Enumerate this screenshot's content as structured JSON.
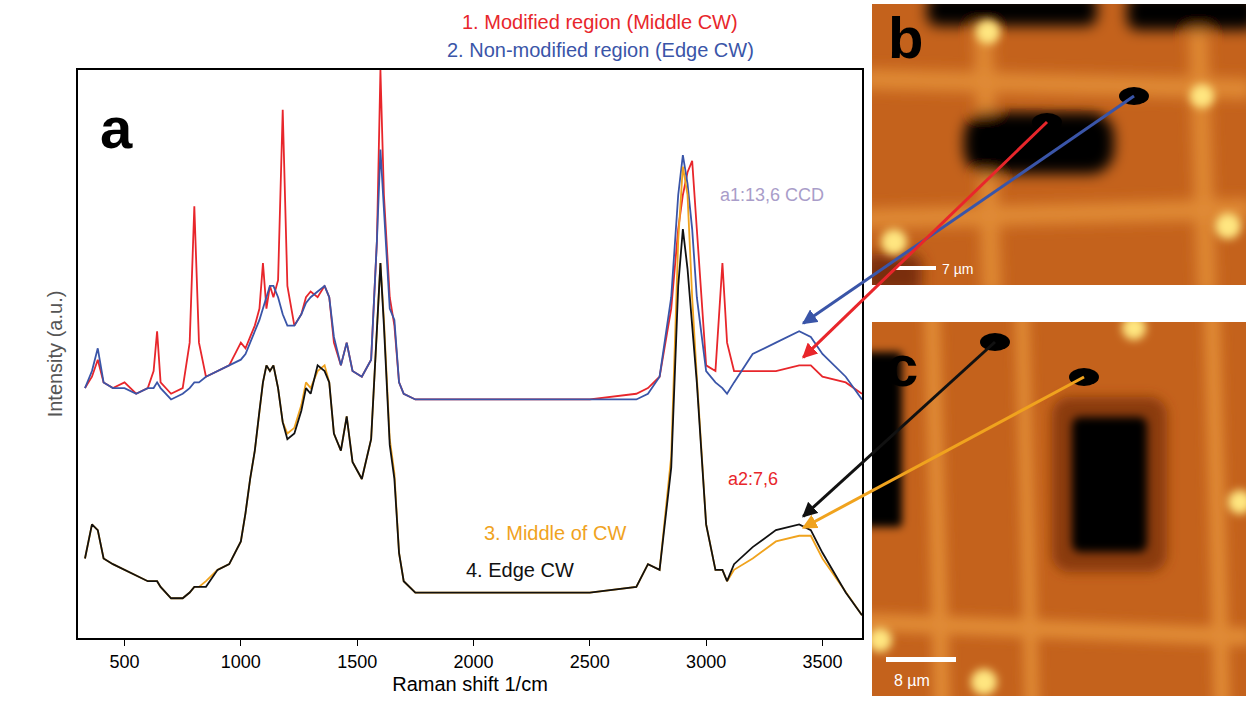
{
  "chart_data": {
    "type": "line",
    "label": "a",
    "x_label": "Raman shift 1/cm",
    "y_label": "Intensity (a.u.)",
    "xlim": [
      300,
      3670
    ],
    "ylim": [
      0,
      100
    ],
    "xticks": [
      500,
      1000,
      1500,
      2000,
      2500,
      3000,
      3500
    ],
    "tick_labels": "x",
    "grid": false,
    "x": [
      330,
      360,
      385,
      410,
      450,
      500,
      550,
      600,
      625,
      640,
      655,
      700,
      750,
      780,
      800,
      820,
      850,
      900,
      950,
      1000,
      1020,
      1040,
      1060,
      1080,
      1095,
      1110,
      1125,
      1140,
      1160,
      1180,
      1200,
      1230,
      1260,
      1280,
      1300,
      1330,
      1360,
      1380,
      1400,
      1430,
      1455,
      1480,
      1520,
      1560,
      1585,
      1600,
      1615,
      1640,
      1660,
      1680,
      1700,
      1750,
      2000,
      2500,
      2700,
      2750,
      2800,
      2850,
      2880,
      2900,
      2920,
      2940,
      2960,
      3000,
      3040,
      3070,
      3090,
      3120,
      3200,
      3300,
      3400,
      3450,
      3500,
      3600,
      3670
    ],
    "series": [
      {
        "name": "1. Modified region (Middle CW)",
        "color": "#e8262b",
        "values": [
          44,
          46,
          49,
          45,
          44,
          45,
          43,
          44,
          47,
          54,
          45,
          43,
          44,
          52,
          76,
          52,
          46,
          47,
          48,
          52,
          51,
          53,
          55,
          58,
          66,
          58,
          62,
          60,
          63,
          93,
          62,
          55,
          57,
          60,
          61,
          60,
          62,
          60,
          52,
          48,
          52,
          47,
          46,
          49,
          70,
          100,
          78,
          60,
          55,
          45,
          43,
          42,
          42,
          42,
          43,
          44,
          46,
          58,
          72,
          78,
          82,
          84,
          72,
          48,
          47,
          66,
          52,
          47,
          47,
          47,
          48,
          48,
          46,
          45,
          43
        ]
      },
      {
        "name": "2. Non-modified region (Edge CW)",
        "color": "#3a55a8",
        "values": [
          44,
          47,
          51,
          45,
          44,
          44,
          43,
          44,
          44,
          45,
          44,
          42,
          43,
          44,
          45,
          45,
          46,
          47,
          48,
          49,
          50,
          52,
          54,
          56,
          58,
          60,
          62,
          62,
          60,
          57,
          55,
          55,
          57,
          59,
          60,
          61,
          62,
          60,
          53,
          48,
          52,
          47,
          46,
          49,
          70,
          86,
          75,
          58,
          56,
          45,
          43,
          42,
          42,
          42,
          42,
          43,
          46,
          60,
          78,
          85,
          80,
          72,
          60,
          47,
          45,
          44,
          43,
          45,
          50,
          52,
          54,
          53,
          50,
          46,
          42
        ]
      },
      {
        "name": "3. Middle of CW",
        "color": "#f0a31e",
        "values": [
          14,
          20,
          19,
          14,
          13,
          12,
          11,
          10,
          10,
          10,
          9,
          7,
          7,
          8,
          9,
          9,
          10,
          12,
          13,
          17,
          22,
          28,
          33,
          40,
          45,
          48,
          47,
          48,
          44,
          38,
          36,
          37,
          41,
          45,
          44,
          47,
          48,
          45,
          36,
          33,
          39,
          31,
          28,
          35,
          55,
          66,
          56,
          35,
          29,
          15,
          10,
          8,
          8,
          8,
          9,
          13,
          12,
          32,
          70,
          83,
          78,
          60,
          46,
          20,
          12,
          12,
          10,
          12,
          14,
          17,
          18,
          18,
          14,
          8,
          4
        ]
      },
      {
        "name": "4. Edge CW",
        "color": "#111111",
        "values": [
          14,
          20,
          19,
          14,
          13,
          12,
          11,
          10,
          10,
          10,
          9,
          7,
          7,
          8,
          9,
          9,
          9,
          12,
          13,
          17,
          22,
          28,
          33,
          40,
          45,
          48,
          47,
          48,
          44,
          38,
          35,
          36,
          40,
          44,
          43,
          48,
          47,
          45,
          36,
          33,
          39,
          31,
          28,
          35,
          55,
          66,
          55,
          34,
          28,
          15,
          10,
          8,
          8,
          8,
          9,
          13,
          12,
          30,
          62,
          72,
          65,
          55,
          45,
          20,
          12,
          12,
          10,
          13,
          16,
          19,
          20,
          19,
          15,
          8,
          4
        ]
      }
    ],
    "annotations": [
      {
        "text": "a1:13,6 CCD",
        "color": "#a99dc9"
      },
      {
        "text": "a2:7,6",
        "color": "#e8262b"
      }
    ]
  },
  "images": [
    {
      "label": "b",
      "scale_bar": "7 µm"
    },
    {
      "label": "c",
      "scale_bar": "8 µm"
    }
  ]
}
